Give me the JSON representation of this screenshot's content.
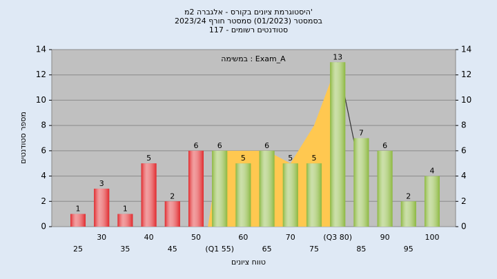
{
  "chart_data": {
    "type": "bar",
    "title": "היסטוגרמת ציונים בקורס - אלגברה 2מ'",
    "subtitle": "בסמסטר  (01/2023)  סמסטר חורף 2023/24",
    "subtitle2": "סטודנטים רשומים - 117",
    "annotation": "במשימה : Exam_A",
    "x_label": "טווח ציונים",
    "y_label": "מספר סטודנטים",
    "categories": [
      "25",
      "30",
      "35",
      "40",
      "45",
      "50",
      "(Q1 55)",
      "60",
      "65",
      "70",
      "75",
      "(Q3 80)",
      "85",
      "90",
      "95",
      "100"
    ],
    "values": [
      1,
      3,
      1,
      5,
      2,
      6,
      6,
      5,
      6,
      5,
      5,
      13,
      7,
      6,
      2,
      4
    ],
    "bar_colors": [
      "#e0282c",
      "#e0282c",
      "#e0282c",
      "#e0282c",
      "#e0282c",
      "#e0282c",
      "#8cb840",
      "#8cb840",
      "#8cb840",
      "#8cb840",
      "#8cb840",
      "#8cb840",
      "#8cb840",
      "#8cb840",
      "#8cb840",
      "#8cb840"
    ],
    "area": {
      "color": "#ffc850",
      "values": [
        null,
        null,
        null,
        null,
        null,
        null,
        6,
        6,
        6,
        5,
        8,
        13,
        null,
        null,
        null,
        null
      ]
    },
    "line": {
      "color": "#333333",
      "values": [
        null,
        null,
        null,
        null,
        null,
        null,
        null,
        null,
        null,
        null,
        null,
        13,
        4,
        null,
        null,
        null
      ]
    },
    "ylim": [
      0,
      14
    ],
    "yticks": [
      0,
      2,
      4,
      6,
      8,
      10,
      12,
      14
    ],
    "y2lim": [
      0,
      14
    ],
    "y2ticks": [
      0,
      2,
      4,
      6,
      8,
      10,
      12,
      14
    ],
    "grid": true
  }
}
